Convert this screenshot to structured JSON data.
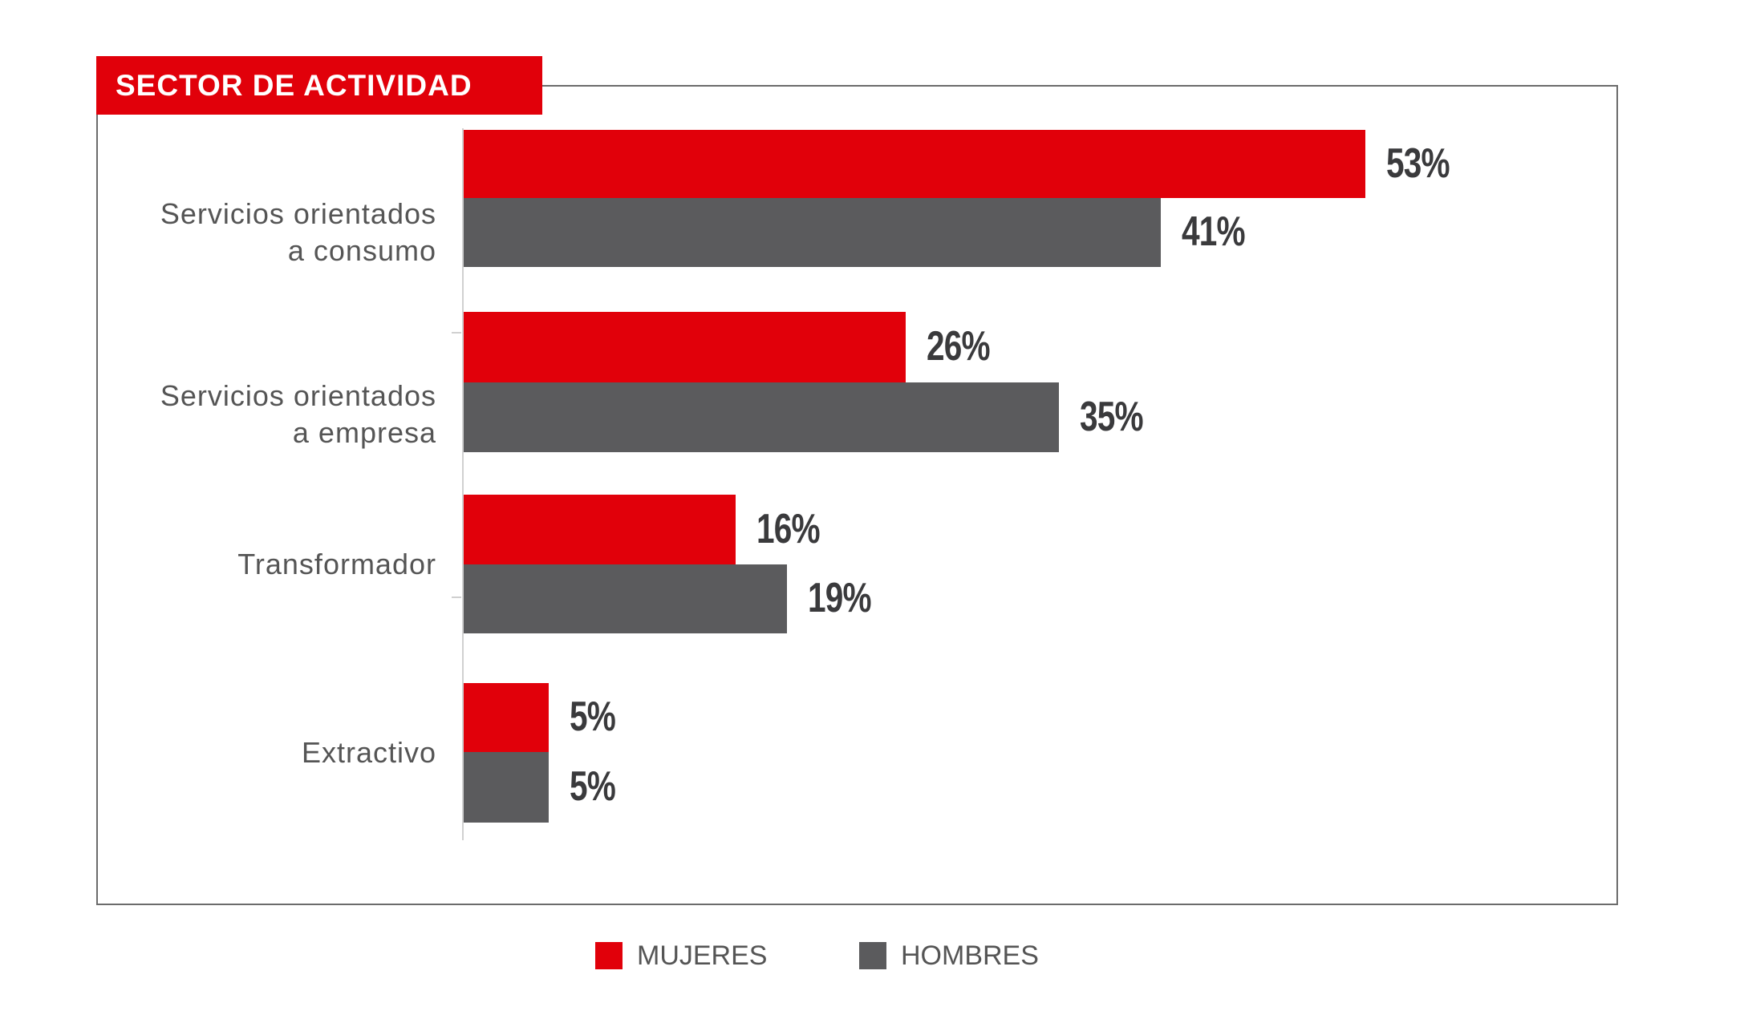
{
  "chart_data": {
    "type": "bar",
    "orientation": "horizontal",
    "title": "SECTOR DE ACTIVIDAD",
    "categories": [
      [
        "Servicios orientados",
        "a consumo"
      ],
      [
        "Servicios orientados",
        "a empresa"
      ],
      [
        "Transformador"
      ],
      [
        "Extractivo"
      ]
    ],
    "series": [
      {
        "name": "MUJERES",
        "color": "#e1000a",
        "values": [
          53,
          26,
          16,
          5
        ],
        "labels": [
          "53%",
          "26%",
          "16%",
          "5%"
        ]
      },
      {
        "name": "HOMBRES",
        "color": "#5b5b5d",
        "values": [
          41,
          35,
          19,
          5
        ],
        "labels": [
          "41%",
          "35%",
          "19%",
          "5%"
        ]
      }
    ],
    "xlim": [
      0,
      100
    ],
    "grid": false,
    "legend": "bottom-center"
  }
}
